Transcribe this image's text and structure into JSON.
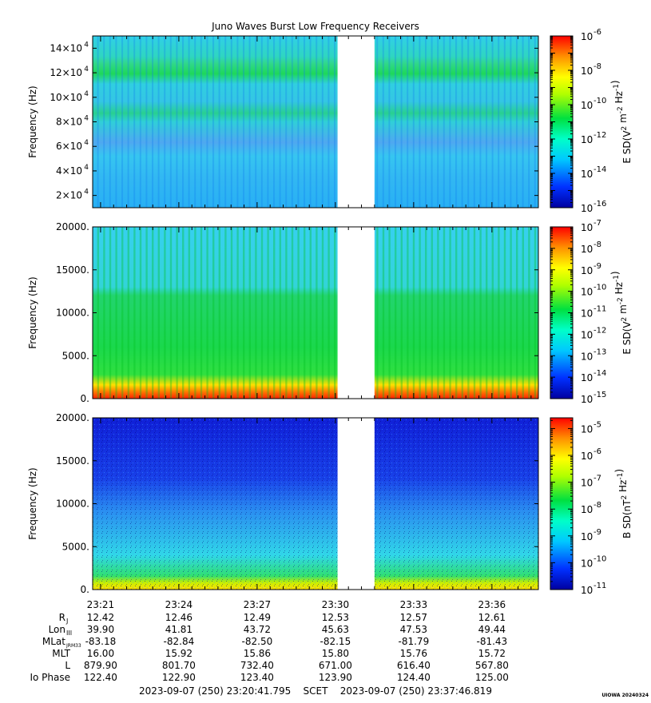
{
  "title": "Juno Waves Burst Low Frequency Receivers",
  "time_range_text": "2023-09-07 (250) 23:20:41.795    SCET    2023-09-07 (250) 23:37:46.819",
  "stamp": "UIOWA 20240324",
  "x_ticks": [
    "23:21",
    "23:24",
    "23:27",
    "23:30",
    "23:33",
    "23:36"
  ],
  "ephemeris": [
    {
      "label": "R",
      "sub": "J",
      "values": [
        "12.42",
        "12.46",
        "12.49",
        "12.53",
        "12.57",
        "12.61"
      ]
    },
    {
      "label": "Lon",
      "sub": "III",
      "values": [
        "39.90",
        "41.81",
        "43.72",
        "45.63",
        "47.53",
        "49.44"
      ]
    },
    {
      "label": "MLat",
      "sub": "JRM33",
      "values": [
        "-83.18",
        "-82.84",
        "-82.50",
        "-82.15",
        "-81.79",
        "-81.43"
      ]
    },
    {
      "label": "MLT",
      "sub": "",
      "values": [
        "16.00",
        "15.92",
        "15.86",
        "15.80",
        "15.76",
        "15.72"
      ]
    },
    {
      "label": "L",
      "sub": "",
      "values": [
        "879.90",
        "801.70",
        "732.40",
        "671.00",
        "616.40",
        "567.80"
      ]
    },
    {
      "label": "Io Phase",
      "sub": "",
      "values": [
        "122.40",
        "122.90",
        "123.40",
        "123.90",
        "124.40",
        "125.00"
      ]
    }
  ],
  "chart_data": [
    {
      "type": "heatmap",
      "panel": "E-field high band",
      "ylabel": "Frequency (Hz)",
      "ylim": [
        10000,
        150000
      ],
      "y_ticks": [
        {
          "value": 20000,
          "base": "2×10",
          "exp": "4"
        },
        {
          "value": 40000,
          "base": "4×10",
          "exp": "4"
        },
        {
          "value": 60000,
          "base": "6×10",
          "exp": "4"
        },
        {
          "value": 80000,
          "base": "8×10",
          "exp": "4"
        },
        {
          "value": 100000,
          "base": "10×10",
          "exp": "4"
        },
        {
          "value": 120000,
          "base": "12×10",
          "exp": "4"
        },
        {
          "value": 140000,
          "base": "14×10",
          "exp": "4"
        }
      ],
      "colorbar": {
        "label": "E SD(V2 m-2 Hz-1)",
        "min_exp": -16,
        "max_exp": -6,
        "labeled_exps": [
          -16,
          -14,
          -12,
          -10,
          -8,
          -6
        ]
      },
      "data_gap": [
        "23:30:05",
        "23:31:30"
      ]
    },
    {
      "type": "heatmap",
      "panel": "E-field low band",
      "ylabel": "Frequency (Hz)",
      "ylim": [
        0,
        20000
      ],
      "y_ticks": [
        {
          "value": 0,
          "base": "0.",
          "exp": ""
        },
        {
          "value": 5000,
          "base": "5000.",
          "exp": ""
        },
        {
          "value": 10000,
          "base": "10000.",
          "exp": ""
        },
        {
          "value": 15000,
          "base": "15000.",
          "exp": ""
        },
        {
          "value": 20000,
          "base": "20000.",
          "exp": ""
        }
      ],
      "colorbar": {
        "label": "E SD(V2 m-2 Hz-1)",
        "min_exp": -15,
        "max_exp": -7,
        "labeled_exps": [
          -15,
          -14,
          -13,
          -12,
          -11,
          -10,
          -9,
          -8,
          -7
        ]
      },
      "data_gap": [
        "23:30:05",
        "23:31:30"
      ]
    },
    {
      "type": "heatmap",
      "panel": "B-field",
      "ylabel": "Frequency (Hz)",
      "ylim": [
        0,
        20000
      ],
      "y_ticks": [
        {
          "value": 0,
          "base": "0.",
          "exp": ""
        },
        {
          "value": 5000,
          "base": "5000.",
          "exp": ""
        },
        {
          "value": 10000,
          "base": "10000.",
          "exp": ""
        },
        {
          "value": 15000,
          "base": "15000.",
          "exp": ""
        },
        {
          "value": 20000,
          "base": "20000.",
          "exp": ""
        }
      ],
      "colorbar": {
        "label": "B SD(nT2 Hz-1)",
        "min_exp": -11,
        "max_exp": -4.6,
        "labeled_exps": [
          -11,
          -10,
          -9,
          -8,
          -7,
          -6,
          -5
        ]
      },
      "data_gap": [
        "23:30:05",
        "23:31:30"
      ]
    }
  ]
}
